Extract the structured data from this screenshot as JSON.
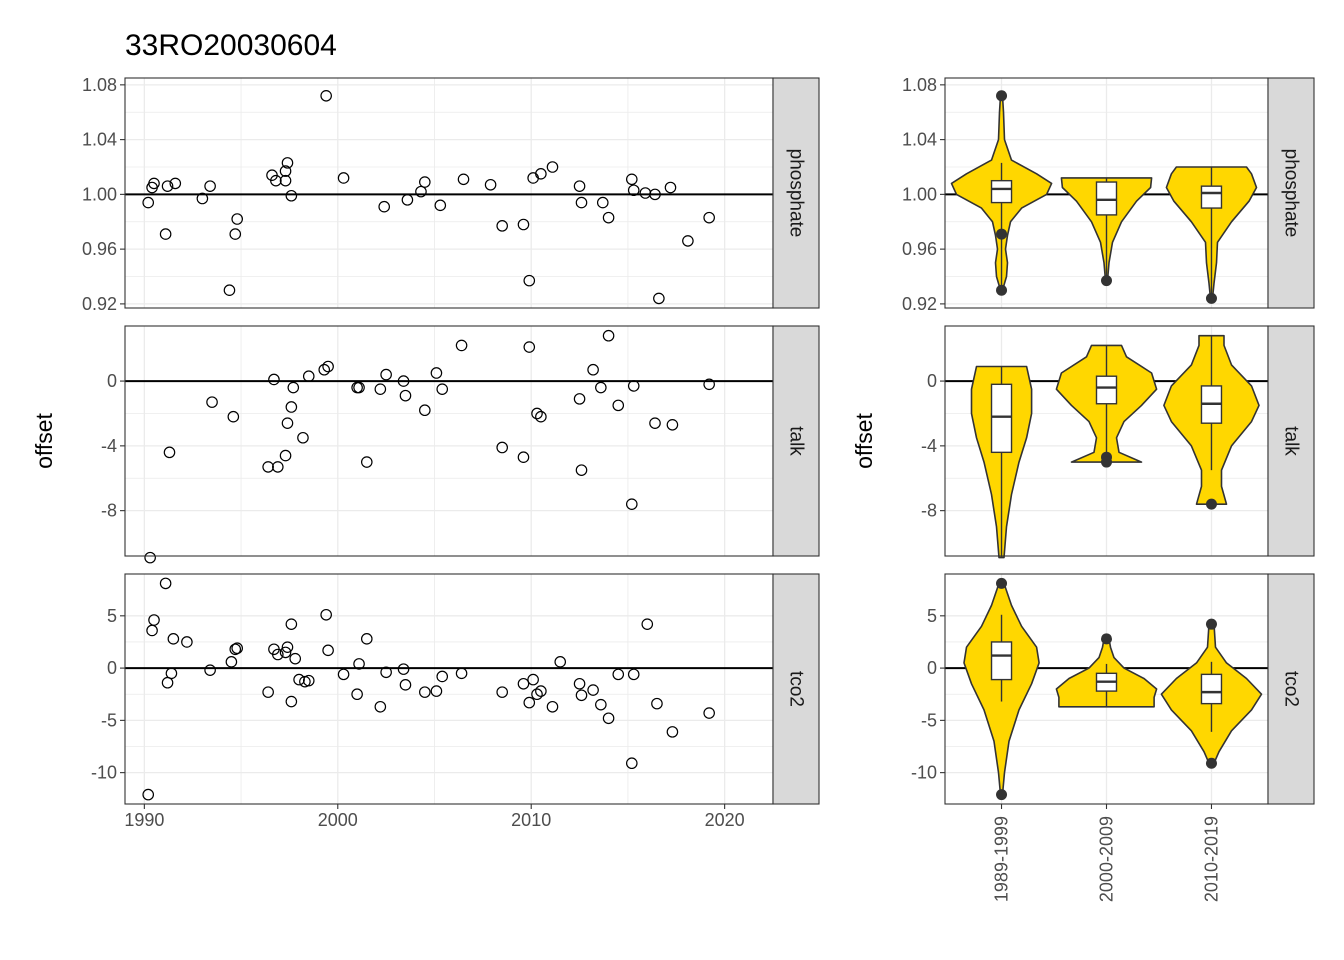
{
  "chart_data": {
    "title": "33RO20030604",
    "ylabel": "offset",
    "x_ticks": [
      1990,
      2000,
      2010,
      2020
    ],
    "xlim": [
      1989,
      2022.5
    ],
    "group_labels": [
      "1989-1999",
      "2000-2009",
      "2010-2019"
    ],
    "colors": {
      "violin_fill": "#FFD700",
      "violin_stroke": "#333333",
      "strip_fill": "#D9D9D9",
      "grid": "#EBEBEB",
      "reference_line": "#000000"
    },
    "panels": [
      {
        "type": "scatter",
        "facet": "phosphate",
        "ylim": [
          0.917,
          1.085
        ],
        "y_ticks": [
          "0.92",
          "0.96",
          "1.00",
          "1.04",
          "1.08"
        ],
        "points": [
          [
            1990.2,
            0.994
          ],
          [
            1990.4,
            1.005
          ],
          [
            1990.5,
            1.008
          ],
          [
            1991.1,
            0.971
          ],
          [
            1991.2,
            1.006
          ],
          [
            1991.6,
            1.008
          ],
          [
            1993.0,
            0.997
          ],
          [
            1993.4,
            1.006
          ],
          [
            1994.4,
            0.93
          ],
          [
            1994.7,
            0.971
          ],
          [
            1994.8,
            0.982
          ],
          [
            1996.6,
            1.014
          ],
          [
            1996.8,
            1.01
          ],
          [
            1997.3,
            1.01
          ],
          [
            1997.3,
            1.017
          ],
          [
            1997.4,
            1.023
          ],
          [
            1997.6,
            0.999
          ],
          [
            1999.4,
            1.072
          ],
          [
            2000.3,
            1.012
          ],
          [
            2002.4,
            0.991
          ],
          [
            2003.6,
            0.996
          ],
          [
            2004.3,
            1.002
          ],
          [
            2004.5,
            1.009
          ],
          [
            2005.3,
            0.992
          ],
          [
            2006.5,
            1.011
          ],
          [
            2007.9,
            1.007
          ],
          [
            2008.5,
            0.977
          ],
          [
            2009.6,
            0.978
          ],
          [
            2009.9,
            0.937
          ],
          [
            2010.1,
            1.012
          ],
          [
            2010.5,
            1.015
          ],
          [
            2011.1,
            1.02
          ],
          [
            2012.5,
            1.006
          ],
          [
            2012.6,
            0.994
          ],
          [
            2013.7,
            0.994
          ],
          [
            2014.0,
            0.983
          ],
          [
            2015.2,
            1.011
          ],
          [
            2015.3,
            1.003
          ],
          [
            2015.9,
            1.001
          ],
          [
            2016.4,
            1.0
          ],
          [
            2016.6,
            0.924
          ],
          [
            2017.2,
            1.005
          ],
          [
            2018.1,
            0.966
          ],
          [
            2019.2,
            0.983
          ]
        ]
      },
      {
        "type": "scatter",
        "facet": "talk",
        "ylim": [
          -10.8,
          3.4
        ],
        "y_ticks": [
          "-8",
          "-4",
          "0"
        ],
        "points": [
          [
            1990.3,
            -10.9
          ],
          [
            1991.3,
            -4.4
          ],
          [
            1993.5,
            -1.3
          ],
          [
            1994.6,
            -2.2
          ],
          [
            1996.4,
            -5.3
          ],
          [
            1996.7,
            0.1
          ],
          [
            1996.9,
            -5.3
          ],
          [
            1997.3,
            -4.6
          ],
          [
            1997.4,
            -2.6
          ],
          [
            1997.6,
            -1.6
          ],
          [
            1997.7,
            -0.4
          ],
          [
            1998.2,
            -3.5
          ],
          [
            1998.5,
            0.3
          ],
          [
            1999.3,
            0.7
          ],
          [
            1999.5,
            0.9
          ],
          [
            2001.0,
            -0.4
          ],
          [
            2001.1,
            -0.4
          ],
          [
            2001.5,
            -5.0
          ],
          [
            2002.2,
            -0.5
          ],
          [
            2002.5,
            0.4
          ],
          [
            2003.4,
            0.0
          ],
          [
            2003.5,
            -0.9
          ],
          [
            2004.5,
            -1.8
          ],
          [
            2005.1,
            0.5
          ],
          [
            2005.4,
            -0.5
          ],
          [
            2006.4,
            2.2
          ],
          [
            2008.5,
            -4.1
          ],
          [
            2009.6,
            -4.7
          ],
          [
            2009.9,
            2.1
          ],
          [
            2010.3,
            -2.0
          ],
          [
            2010.5,
            -2.2
          ],
          [
            2012.5,
            -1.1
          ],
          [
            2012.6,
            -5.5
          ],
          [
            2013.2,
            0.7
          ],
          [
            2013.6,
            -0.4
          ],
          [
            2014.0,
            2.8
          ],
          [
            2014.5,
            -1.5
          ],
          [
            2015.2,
            -7.6
          ],
          [
            2015.3,
            -0.3
          ],
          [
            2016.4,
            -2.6
          ],
          [
            2017.3,
            -2.7
          ],
          [
            2019.2,
            -0.2
          ]
        ]
      },
      {
        "type": "scatter",
        "facet": "tco2",
        "ylim": [
          -13.0,
          9.0
        ],
        "y_ticks": [
          "-10",
          "-5",
          "0",
          "5"
        ],
        "points": [
          [
            1990.2,
            -12.1
          ],
          [
            1990.4,
            3.6
          ],
          [
            1990.5,
            4.6
          ],
          [
            1991.1,
            8.1
          ],
          [
            1991.2,
            -1.4
          ],
          [
            1991.4,
            -0.5
          ],
          [
            1991.5,
            2.8
          ],
          [
            1992.2,
            2.5
          ],
          [
            1993.4,
            -0.2
          ],
          [
            1994.5,
            0.6
          ],
          [
            1994.7,
            1.8
          ],
          [
            1994.8,
            1.9
          ],
          [
            1996.4,
            -2.3
          ],
          [
            1996.7,
            1.8
          ],
          [
            1996.9,
            1.3
          ],
          [
            1997.3,
            1.5
          ],
          [
            1997.4,
            2.0
          ],
          [
            1997.6,
            4.2
          ],
          [
            1997.6,
            -3.2
          ],
          [
            1997.8,
            0.9
          ],
          [
            1998.0,
            -1.1
          ],
          [
            1998.3,
            -1.3
          ],
          [
            1998.5,
            -1.2
          ],
          [
            1999.4,
            5.1
          ],
          [
            1999.5,
            1.7
          ],
          [
            2000.3,
            -0.6
          ],
          [
            2001.0,
            -2.5
          ],
          [
            2001.1,
            0.4
          ],
          [
            2001.5,
            2.8
          ],
          [
            2002.2,
            -3.7
          ],
          [
            2002.5,
            -0.4
          ],
          [
            2003.4,
            -0.1
          ],
          [
            2003.5,
            -1.6
          ],
          [
            2004.5,
            -2.3
          ],
          [
            2005.1,
            -2.2
          ],
          [
            2005.4,
            -0.8
          ],
          [
            2006.4,
            -0.5
          ],
          [
            2008.5,
            -2.3
          ],
          [
            2009.6,
            -1.5
          ],
          [
            2009.9,
            -3.3
          ],
          [
            2010.1,
            -1.1
          ],
          [
            2010.3,
            -2.5
          ],
          [
            2010.5,
            -2.2
          ],
          [
            2011.1,
            -3.7
          ],
          [
            2011.5,
            0.6
          ],
          [
            2012.5,
            -1.5
          ],
          [
            2012.6,
            -2.6
          ],
          [
            2013.2,
            -2.1
          ],
          [
            2013.6,
            -3.5
          ],
          [
            2014.0,
            -4.8
          ],
          [
            2014.5,
            -0.6
          ],
          [
            2015.2,
            -9.1
          ],
          [
            2015.3,
            -0.6
          ],
          [
            2016.0,
            4.2
          ],
          [
            2016.5,
            -3.4
          ],
          [
            2017.3,
            -6.1
          ],
          [
            2019.2,
            -4.3
          ]
        ]
      },
      {
        "type": "violin",
        "facet": "phosphate",
        "ylim": [
          0.917,
          1.085
        ],
        "y_ticks": [
          "0.92",
          "0.96",
          "1.00",
          "1.04",
          "1.08"
        ],
        "groups": [
          {
            "label": "1989-1999",
            "min": 0.93,
            "q1": 0.994,
            "median": 1.004,
            "q3": 1.01,
            "max": 1.023,
            "outliers": [
              1.072,
              0.971,
              0.93
            ],
            "density": [
              [
                0.93,
                0.02
              ],
              [
                0.94,
                0.1
              ],
              [
                0.95,
                0.12
              ],
              [
                0.96,
                0.08
              ],
              [
                0.97,
                0.12
              ],
              [
                0.98,
                0.18
              ],
              [
                0.99,
                0.4
              ],
              [
                1.0,
                0.9
              ],
              [
                1.008,
                1.0
              ],
              [
                1.015,
                0.7
              ],
              [
                1.025,
                0.2
              ],
              [
                1.04,
                0.06
              ],
              [
                1.06,
                0.04
              ],
              [
                1.072,
                0.02
              ]
            ]
          },
          {
            "label": "2000-2009",
            "min": 0.937,
            "q1": 0.985,
            "median": 0.996,
            "q3": 1.009,
            "max": 1.012,
            "outliers": [
              0.937
            ],
            "density": [
              [
                0.937,
                0.02
              ],
              [
                0.95,
                0.05
              ],
              [
                0.965,
                0.12
              ],
              [
                0.98,
                0.3
              ],
              [
                0.995,
                0.6
              ],
              [
                1.005,
                0.88
              ],
              [
                1.012,
                0.9
              ]
            ]
          },
          {
            "label": "2010-2019",
            "min": 0.924,
            "q1": 0.99,
            "median": 1.001,
            "q3": 1.006,
            "max": 1.02,
            "outliers": [
              0.924
            ],
            "density": [
              [
                0.924,
                0.02
              ],
              [
                0.935,
                0.05
              ],
              [
                0.95,
                0.1
              ],
              [
                0.965,
                0.12
              ],
              [
                0.98,
                0.4
              ],
              [
                0.995,
                0.75
              ],
              [
                1.005,
                0.9
              ],
              [
                1.015,
                0.8
              ],
              [
                1.02,
                0.7
              ]
            ]
          }
        ]
      },
      {
        "type": "violin",
        "facet": "talk",
        "ylim": [
          -10.8,
          3.4
        ],
        "y_ticks": [
          "-8",
          "-4",
          "0"
        ],
        "groups": [
          {
            "label": "1989-1999",
            "min": -10.9,
            "q1": -4.4,
            "median": -2.2,
            "q3": -0.2,
            "max": 0.9,
            "outliers": [],
            "density": [
              [
                -10.9,
                0.05
              ],
              [
                -9,
                0.1
              ],
              [
                -7,
                0.2
              ],
              [
                -5,
                0.35
              ],
              [
                -3.5,
                0.5
              ],
              [
                -2,
                0.6
              ],
              [
                -0.5,
                0.6
              ],
              [
                0.9,
                0.5
              ]
            ]
          },
          {
            "label": "2000-2009",
            "min": -4.7,
            "q1": -1.4,
            "median": -0.4,
            "q3": 0.3,
            "max": 2.2,
            "outliers": [
              -4.7,
              -5.0
            ],
            "density": [
              [
                -5.0,
                0.7
              ],
              [
                -4.4,
                0.25
              ],
              [
                -3.5,
                0.2
              ],
              [
                -2.5,
                0.35
              ],
              [
                -1.5,
                0.7
              ],
              [
                -0.5,
                1.0
              ],
              [
                0.5,
                0.9
              ],
              [
                1.5,
                0.4
              ],
              [
                2.2,
                0.3
              ]
            ]
          },
          {
            "label": "2010-2019",
            "min": -5.5,
            "q1": -2.6,
            "median": -1.4,
            "q3": -0.3,
            "max": 2.8,
            "outliers": [
              -7.6
            ],
            "density": [
              [
                -7.6,
                0.3
              ],
              [
                -6.5,
                0.2
              ],
              [
                -5.5,
                0.2
              ],
              [
                -4,
                0.4
              ],
              [
                -2.5,
                0.8
              ],
              [
                -1.5,
                0.95
              ],
              [
                -0.3,
                0.8
              ],
              [
                1,
                0.4
              ],
              [
                2.2,
                0.25
              ],
              [
                2.8,
                0.25
              ]
            ]
          }
        ]
      },
      {
        "type": "violin",
        "facet": "tco2",
        "ylim": [
          -13.0,
          9.0
        ],
        "y_ticks": [
          "-10",
          "-5",
          "0",
          "5"
        ],
        "groups": [
          {
            "label": "1989-1999",
            "min": -3.2,
            "q1": -1.1,
            "median": 1.2,
            "q3": 2.5,
            "max": 5.1,
            "outliers": [
              8.1,
              -12.1
            ],
            "density": [
              [
                -12.1,
                0.02
              ],
              [
                -10,
                0.06
              ],
              [
                -7,
                0.15
              ],
              [
                -4,
                0.35
              ],
              [
                -1.5,
                0.6
              ],
              [
                0.5,
                0.75
              ],
              [
                2,
                0.7
              ],
              [
                4,
                0.4
              ],
              [
                6,
                0.2
              ],
              [
                8.1,
                0.05
              ]
            ]
          },
          {
            "label": "2000-2009",
            "min": -3.7,
            "q1": -2.2,
            "median": -1.3,
            "q3": -0.5,
            "max": 0.4,
            "outliers": [
              2.8
            ],
            "density": [
              [
                -3.7,
                0.95
              ],
              [
                -2.8,
                0.95
              ],
              [
                -2,
                1.0
              ],
              [
                -1,
                0.75
              ],
              [
                0,
                0.35
              ],
              [
                1,
                0.15
              ],
              [
                2,
                0.08
              ],
              [
                2.8,
                0.05
              ]
            ]
          },
          {
            "label": "2010-2019",
            "min": -6.1,
            "q1": -3.4,
            "median": -2.3,
            "q3": -0.6,
            "max": 0.6,
            "outliers": [
              4.2,
              -9.1
            ],
            "density": [
              [
                -9.1,
                0.05
              ],
              [
                -8,
                0.15
              ],
              [
                -6,
                0.4
              ],
              [
                -4,
                0.8
              ],
              [
                -2.5,
                1.0
              ],
              [
                -1,
                0.7
              ],
              [
                0.5,
                0.3
              ],
              [
                2,
                0.08
              ],
              [
                4.2,
                0.05
              ]
            ]
          }
        ]
      }
    ]
  }
}
